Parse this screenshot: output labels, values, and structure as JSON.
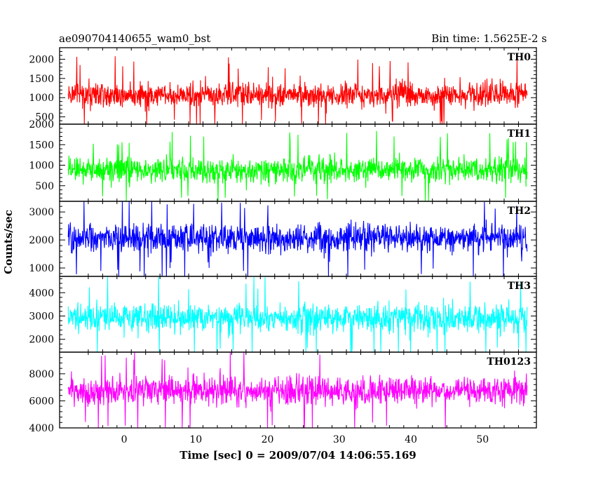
{
  "header": {
    "left_title": "ae090704140655_wam0_bst",
    "right_title": "Bin time: 1.5625E-2 s"
  },
  "chart_data": {
    "type": "line",
    "xlabel": "Time [sec] 0 = 2009/07/04 14:06:55.169",
    "ylabel": "Counts/sec",
    "xlim": [
      -9,
      57.5
    ],
    "x_ticks": [
      0,
      10,
      20,
      30,
      40,
      50
    ],
    "x_data_range": [
      -7.8,
      56.2
    ],
    "bin_time": 0.015625,
    "panels": [
      {
        "name": "TH0",
        "color": "#ff0000",
        "ylim": [
          310,
          2300
        ],
        "y_ticks": [
          500,
          1000,
          1500,
          2000
        ],
        "mean": 1080,
        "typical_low": 480,
        "typical_high": 1700,
        "min": 310,
        "max": 2300
      },
      {
        "name": "TH1",
        "color": "#00ff00",
        "ylim": [
          120,
          2000
        ],
        "y_ticks": [
          500,
          1000,
          1500,
          2000
        ],
        "mean": 880,
        "typical_low": 330,
        "typical_high": 1500,
        "min": 130,
        "max": 2000
      },
      {
        "name": "TH2",
        "color": "#0000ff",
        "ylim": [
          700,
          3380
        ],
        "y_ticks": [
          1000,
          2000,
          3000
        ],
        "mean": 2050,
        "typical_low": 1120,
        "typical_high": 3100,
        "min": 700,
        "max": 3380
      },
      {
        "name": "TH3",
        "color": "#00ffff",
        "ylim": [
          1450,
          4700
        ],
        "y_ticks": [
          2000,
          3000,
          4000
        ],
        "mean": 2900,
        "typical_low": 1800,
        "typical_high": 4150,
        "min": 1450,
        "max": 4700
      },
      {
        "name": "TH0123",
        "color": "#ff00ff",
        "ylim": [
          4000,
          9600
        ],
        "y_ticks": [
          4000,
          6000,
          8000
        ],
        "mean": 6750,
        "typical_low": 4700,
        "typical_high": 8800,
        "min": 4000,
        "max": 9600
      }
    ]
  }
}
